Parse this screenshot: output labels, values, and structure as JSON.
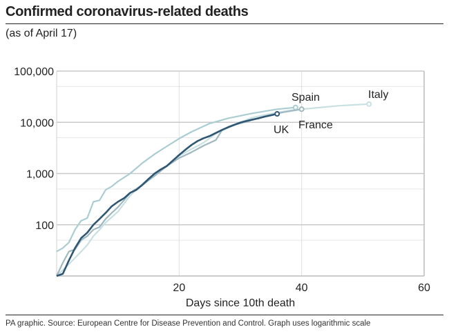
{
  "title": "Confirmed coronavirus-related deaths",
  "subtitle": "(as of April 17)",
  "footer": "PA graphic. Source: European Centre for Disease Prevention and Control. Graph uses logarithmic scale",
  "chart_data": {
    "type": "line",
    "xlabel": "Days since 10th death",
    "ylabel": "",
    "xlim": [
      0,
      60
    ],
    "ylim": [
      10,
      100000
    ],
    "y_scale": "log",
    "x_ticks": [
      20,
      40,
      60
    ],
    "y_ticks": [
      100,
      1000,
      10000,
      100000
    ],
    "y_tick_labels": [
      "100",
      "1,000",
      "10,000",
      "100,000"
    ],
    "grid": true,
    "series": [
      {
        "name": "Italy",
        "color": "#c8e0e1",
        "points": [
          [
            0,
            10
          ],
          [
            2,
            17
          ],
          [
            4,
            30
          ],
          [
            5,
            40
          ],
          [
            6,
            60
          ],
          [
            7,
            80
          ],
          [
            8,
            110
          ],
          [
            10,
            180
          ],
          [
            12,
            370
          ],
          [
            14,
            630
          ],
          [
            16,
            1000
          ],
          [
            18,
            1450
          ],
          [
            20,
            2200
          ],
          [
            22,
            3000
          ],
          [
            24,
            4000
          ],
          [
            26,
            6000
          ],
          [
            28,
            8200
          ],
          [
            30,
            10000
          ],
          [
            32,
            12400
          ],
          [
            35,
            14700
          ],
          [
            38,
            17000
          ],
          [
            42,
            19000
          ],
          [
            46,
            21000
          ],
          [
            51,
            22700
          ]
        ]
      },
      {
        "name": "France",
        "color": "#9fb8c0",
        "points": [
          [
            0,
            10
          ],
          [
            1,
            18
          ],
          [
            2,
            30
          ],
          [
            3,
            33
          ],
          [
            4,
            50
          ],
          [
            5,
            60
          ],
          [
            6,
            80
          ],
          [
            7,
            90
          ],
          [
            8,
            130
          ],
          [
            9,
            170
          ],
          [
            10,
            220
          ],
          [
            11,
            300
          ],
          [
            12,
            420
          ],
          [
            14,
            600
          ],
          [
            16,
            900
          ],
          [
            18,
            1400
          ],
          [
            20,
            2000
          ],
          [
            22,
            2600
          ],
          [
            24,
            3500
          ],
          [
            26,
            4500
          ],
          [
            27,
            7000
          ],
          [
            29,
            8900
          ],
          [
            31,
            10300
          ],
          [
            33,
            12200
          ],
          [
            35,
            14000
          ],
          [
            37,
            15700
          ],
          [
            39,
            17200
          ],
          [
            40,
            18000
          ]
        ]
      },
      {
        "name": "Spain",
        "color": "#aacdd1",
        "points": [
          [
            0,
            30
          ],
          [
            1,
            35
          ],
          [
            2,
            45
          ],
          [
            3,
            80
          ],
          [
            4,
            120
          ],
          [
            5,
            135
          ],
          [
            6,
            280
          ],
          [
            7,
            300
          ],
          [
            8,
            480
          ],
          [
            9,
            560
          ],
          [
            10,
            700
          ],
          [
            12,
            1000
          ],
          [
            14,
            1600
          ],
          [
            16,
            2400
          ],
          [
            18,
            3400
          ],
          [
            20,
            4800
          ],
          [
            22,
            6500
          ],
          [
            25,
            9500
          ],
          [
            28,
            12000
          ],
          [
            32,
            15000
          ],
          [
            36,
            18000
          ],
          [
            39,
            19500
          ]
        ]
      },
      {
        "name": "UK",
        "color": "#2f5673",
        "points": [
          [
            0,
            10
          ],
          [
            1,
            11
          ],
          [
            2,
            20
          ],
          [
            3,
            35
          ],
          [
            4,
            55
          ],
          [
            5,
            70
          ],
          [
            6,
            100
          ],
          [
            7,
            130
          ],
          [
            8,
            170
          ],
          [
            9,
            230
          ],
          [
            10,
            280
          ],
          [
            11,
            330
          ],
          [
            12,
            420
          ],
          [
            13,
            480
          ],
          [
            14,
            600
          ],
          [
            15,
            780
          ],
          [
            16,
            1000
          ],
          [
            17,
            1200
          ],
          [
            18,
            1400
          ],
          [
            19,
            1800
          ],
          [
            20,
            2300
          ],
          [
            21,
            2900
          ],
          [
            22,
            3600
          ],
          [
            23,
            4300
          ],
          [
            24,
            4900
          ],
          [
            25,
            5400
          ],
          [
            26,
            6200
          ],
          [
            27,
            7100
          ],
          [
            28,
            8000
          ],
          [
            29,
            8900
          ],
          [
            30,
            9900
          ],
          [
            31,
            10600
          ],
          [
            32,
            11300
          ],
          [
            33,
            12000
          ],
          [
            34,
            12900
          ],
          [
            35,
            13700
          ],
          [
            36,
            14600
          ]
        ]
      }
    ]
  }
}
